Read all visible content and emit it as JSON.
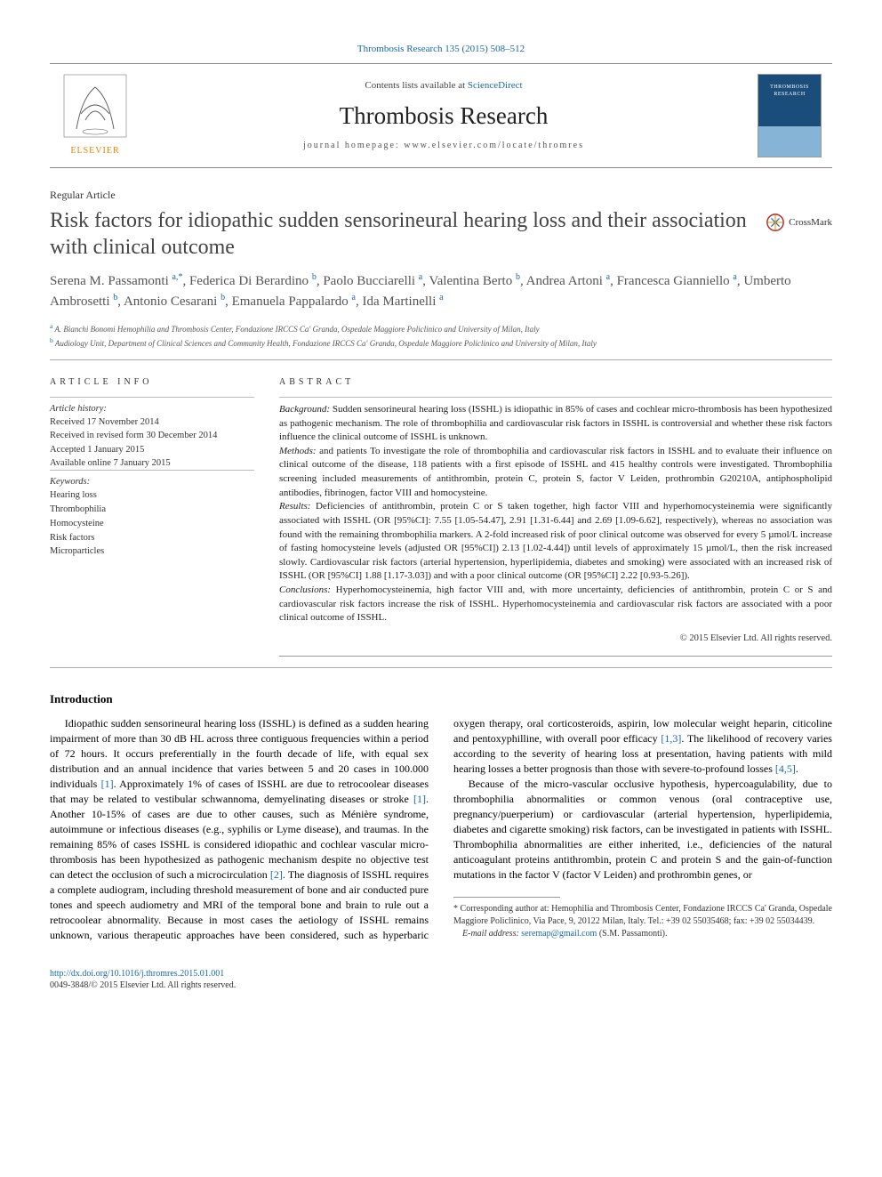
{
  "citation": "Thrombosis Research 135 (2015) 508–512",
  "header": {
    "contents_prefix": "Contents lists available at ",
    "contents_link": "ScienceDirect",
    "journal": "Thrombosis Research",
    "homepage_prefix": "journal homepage: ",
    "homepage_url": "www.elsevier.com/locate/thromres",
    "cover_title": "THROMBOSIS RESEARCH"
  },
  "article_type": "Regular Article",
  "title": "Risk factors for idiopathic sudden sensorineural hearing loss and their association with clinical outcome",
  "crossmark_label": "CrossMark",
  "authors": [
    {
      "name": "Serena M. Passamonti",
      "aff": "a,",
      "corr": true
    },
    {
      "name": "Federica Di Berardino",
      "aff": "b"
    },
    {
      "name": "Paolo Bucciarelli",
      "aff": "a"
    },
    {
      "name": "Valentina Berto",
      "aff": "b"
    },
    {
      "name": "Andrea Artoni",
      "aff": "a"
    },
    {
      "name": "Francesca Gianniello",
      "aff": "a"
    },
    {
      "name": "Umberto Ambrosetti",
      "aff": "b"
    },
    {
      "name": "Antonio Cesarani",
      "aff": "b"
    },
    {
      "name": "Emanuela Pappalardo",
      "aff": "a"
    },
    {
      "name": "Ida Martinelli",
      "aff": "a"
    }
  ],
  "affiliations": {
    "a": "A. Bianchi Bonomi Hemophilia and Thrombosis Center, Fondazione IRCCS Ca' Granda, Ospedale Maggiore Policlinico and University of Milan, Italy",
    "b": "Audiology Unit, Department of Clinical Sciences and Community Health, Fondazione IRCCS Ca' Granda, Ospedale Maggiore Policlinico and University of Milan, Italy"
  },
  "article_info": {
    "heading": "ARTICLE INFO",
    "history_label": "Article history:",
    "received": "Received 17 November 2014",
    "revised": "Received in revised form 30 December 2014",
    "accepted": "Accepted 1 January 2015",
    "online": "Available online 7 January 2015",
    "keywords_label": "Keywords:",
    "keywords": [
      "Hearing loss",
      "Thrombophilia",
      "Homocysteine",
      "Risk factors",
      "Microparticles"
    ]
  },
  "abstract": {
    "heading": "ABSTRACT",
    "background_label": "Background:",
    "background": " Sudden sensorineural hearing loss (ISSHL) is idiopathic in 85% of cases and cochlear micro-thrombosis has been hypothesized as pathogenic mechanism. The role of thrombophilia and cardiovascular risk factors in ISSHL is controversial and whether these risk factors influence the clinical outcome of ISSHL is unknown.",
    "methods_label": "Methods:",
    "methods": " and patients To investigate the role of thrombophilia and cardiovascular risk factors in ISSHL and to evaluate their influence on clinical outcome of the disease, 118 patients with a first episode of ISSHL and 415 healthy controls were investigated. Thrombophilia screening included measurements of antithrombin, protein C, protein S, factor V Leiden, prothrombin G20210A, antiphospholipid antibodies, fibrinogen, factor VIII and homocysteine.",
    "results_label": "Results:",
    "results": " Deficiencies of antithrombin, protein C or S taken together, high factor VIII and hyperhomocysteinemia were significantly associated with ISSHL (OR [95%CI]: 7.55 [1.05-54.47], 2.91 [1.31-6.44] and 2.69 [1.09-6.62], respectively), whereas no association was found with the remaining thrombophilia markers. A 2-fold increased risk of poor clinical outcome was observed for every 5 µmol/L increase of fasting homocysteine levels (adjusted OR [95%CI]) 2.13 [1.02-4.44]) until levels of approximately 15 µmol/L, then the risk increased slowly. Cardiovascular risk factors (arterial hypertension, hyperlipidemia, diabetes and smoking) were associated with an increased risk of ISSHL (OR [95%CI] 1.88 [1.17-3.03]) and with a poor clinical outcome (OR [95%CI] 2.22 [0.93-5.26]).",
    "conclusions_label": "Conclusions:",
    "conclusions": " Hyperhomocysteinemia, high factor VIII and, with more uncertainty, deficiencies of antithrombin, protein C or S and cardiovascular risk factors increase the risk of ISSHL. Hyperhomocysteinemia and cardiovascular risk factors are associated with a poor clinical outcome of ISSHL.",
    "copyright": "© 2015 Elsevier Ltd. All rights reserved."
  },
  "intro_heading": "Introduction",
  "intro_p1": "Idiopathic sudden sensorineural hearing loss (ISSHL) is defined as a sudden hearing impairment of more than 30 dB HL across three contiguous frequencies within a period of 72 hours. It occurs preferentially in the fourth decade of life, with equal sex distribution and an annual incidence that varies between 5 and 20 cases in 100.000 individuals ",
  "intro_p1b": ". Approximately 1% of cases of ISSHL are due to retrocoolear diseases that may be related to vestibular schwannoma, demyelinating diseases or stroke ",
  "intro_p1c": ". Another 10-15% of cases are due to other causes, such as Ménière syndrome, autoimmune or infectious diseases (e.g., syphilis or Lyme disease), and traumas. In the remaining 85% of cases ISSHL is considered idiopathic and cochlear vascular micro-thrombosis has been hypothesized as pathogenic mechanism despite no objective test",
  "intro_p2a": "can detect the occlusion of such a microcirculation ",
  "intro_p2b": ". The diagnosis of ISSHL requires a complete audiogram, including threshold measurement of bone and air conducted pure tones and speech audiometry and MRI of the temporal bone and brain to rule out a retrocoolear abnormality. Because in most cases the aetiology of ISSHL remains unknown, various therapeutic approaches have been considered, such as hyperbaric oxygen therapy, oral corticosteroids, aspirin, low molecular weight heparin, citicoline and pentoxyphilline, with overall poor efficacy ",
  "intro_p2c": ". The likelihood of recovery varies according to the severity of hearing loss at presentation, having patients with mild hearing losses a better prognosis than those with severe-to-profound losses ",
  "intro_p2d": ".",
  "intro_p3": "Because of the micro-vascular occlusive hypothesis, hypercoagulability, due to thrombophilia abnormalities or common venous (oral contraceptive use, pregnancy/puerperium) or cardiovascular (arterial hypertension, hyperlipidemia, diabetes and cigarette smoking) risk factors, can be investigated in patients with ISSHL. Thrombophilia abnormalities are either inherited, i.e., deficiencies of the natural anticoagulant proteins antithrombin, protein C and protein S and the gain-of-function mutations in the factor V (factor V Leiden) and prothrombin genes, or",
  "refs": {
    "r1": "[1]",
    "r2": "[2]",
    "r13": "[1,3]",
    "r45": "[4,5]"
  },
  "footnote": {
    "corr_marker": "*",
    "corr_text": " Corresponding author at: Hemophilia and Thrombosis Center, Fondazione IRCCS Ca' Granda, Ospedale Maggiore Policlinico, Via Pace, 9, 20122 Milan, Italy. Tel.: +39 02 55035468; fax: +39 02 55034439.",
    "email_label": "E-mail address: ",
    "email": "seremap@gmail.com",
    "email_suffix": " (S.M. Passamonti)."
  },
  "bottom": {
    "doi": "http://dx.doi.org/10.1016/j.thromres.2015.01.001",
    "issn_line": "0049-3848/© 2015 Elsevier Ltd. All rights reserved."
  },
  "colors": {
    "link": "#1768b0",
    "text": "#000000",
    "muted": "#555555",
    "rule": "#999999",
    "cover_bg": "#1a4d7a",
    "cover_bar": "#86b4d6",
    "elsevier_orange": "#e98300"
  }
}
